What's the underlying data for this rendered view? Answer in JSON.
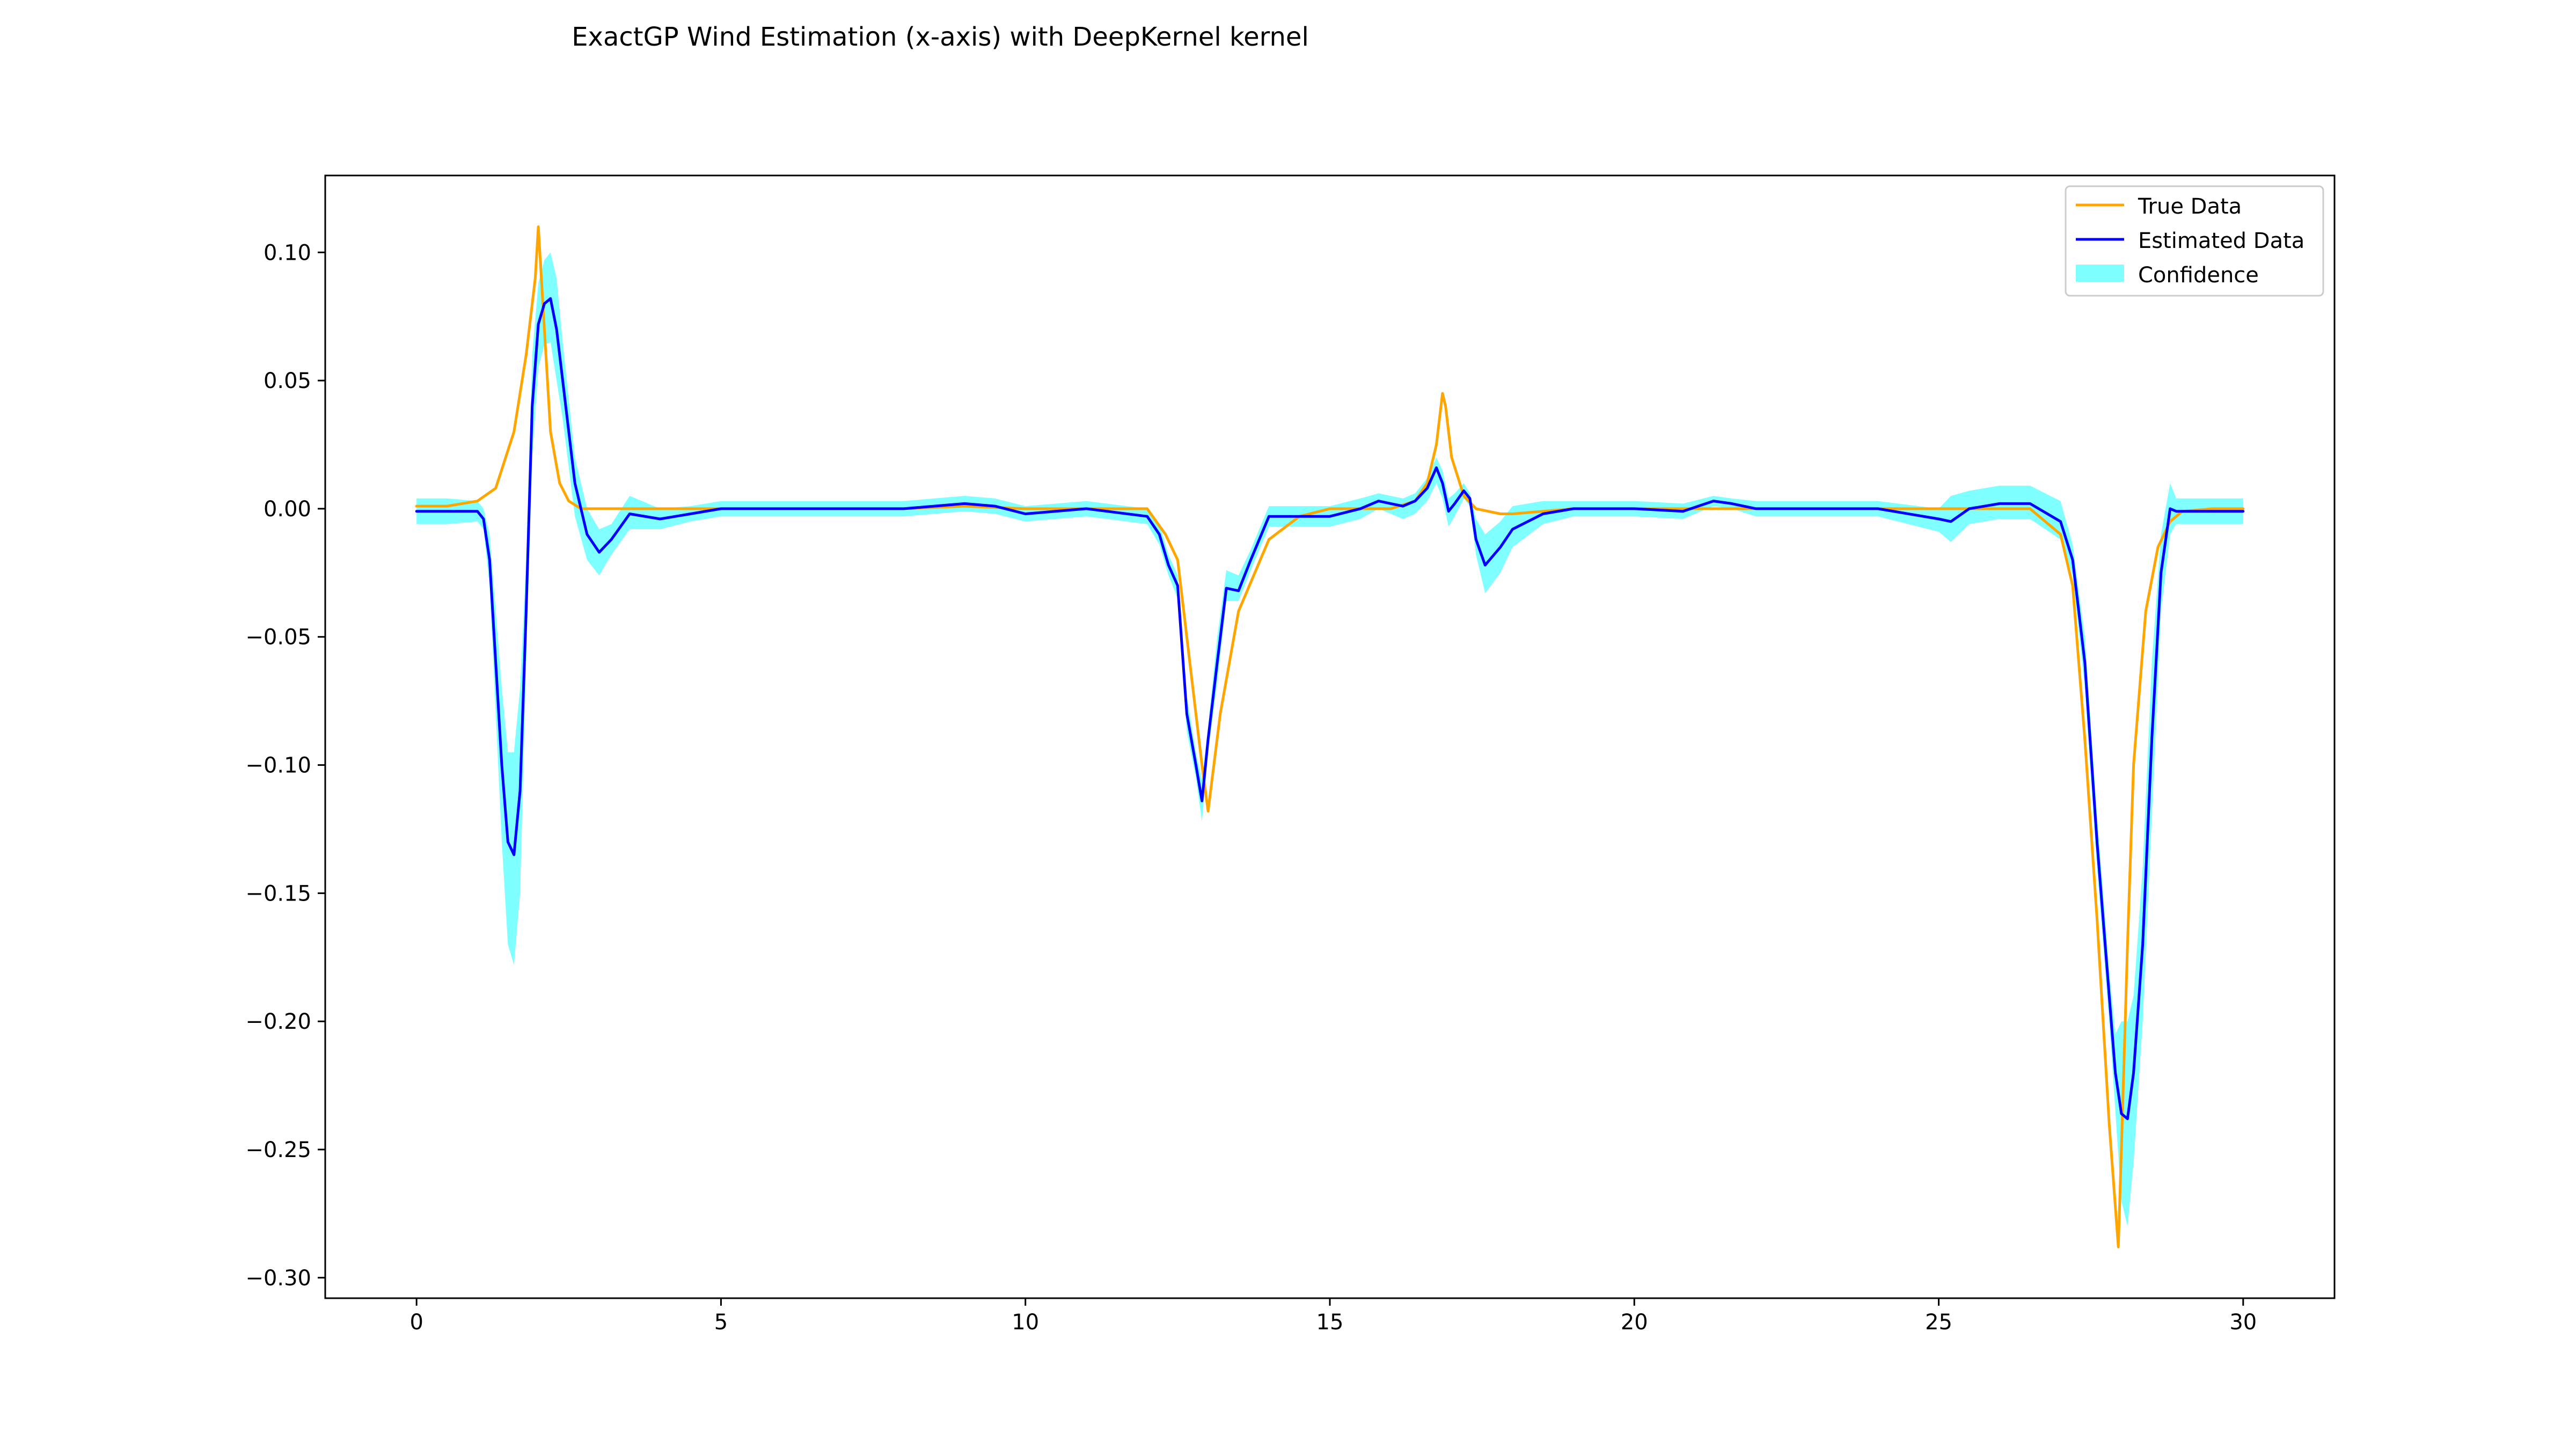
{
  "figure": {
    "title": "ExactGP Wind Estimation (x-axis) with DeepKernel kernel"
  },
  "legend": {
    "placement": "top-right",
    "items": [
      {
        "label": "True Data",
        "kind": "line",
        "color": "#ffa500"
      },
      {
        "label": "Estimated Data",
        "kind": "line",
        "color": "#0000ff"
      },
      {
        "label": "Confidence",
        "kind": "patch",
        "color": "#00ffff"
      }
    ]
  },
  "chart_data": {
    "type": "line",
    "title": "ExactGP Wind Estimation (x-axis) with DeepKernel kernel",
    "xlabel": "",
    "ylabel": "",
    "xlim": [
      -1.5,
      31.5
    ],
    "ylim": [
      -0.308,
      0.13
    ],
    "grid": false,
    "legend_position": "top-right",
    "xticks": [
      0,
      5,
      10,
      15,
      20,
      25,
      30
    ],
    "xtick_labels": [
      "0",
      "5",
      "10",
      "15",
      "20",
      "25",
      "30"
    ],
    "yticks": [
      0.1,
      0.05,
      0.0,
      -0.05,
      -0.1,
      -0.15,
      -0.2,
      -0.25,
      -0.3
    ],
    "ytick_labels": [
      "0.10",
      "0.05",
      "0.00",
      "−0.05",
      "−0.10",
      "−0.15",
      "−0.20",
      "−0.25",
      "−0.30"
    ],
    "series": [
      {
        "name": "True Data",
        "color": "#ffa500",
        "x": [
          0,
          0.5,
          1.0,
          1.3,
          1.6,
          1.8,
          1.95,
          2.0,
          2.1,
          2.2,
          2.35,
          2.5,
          2.7,
          3.0,
          4.0,
          5.0,
          8.0,
          9.0,
          10.0,
          11.0,
          12.0,
          12.3,
          12.5,
          12.7,
          12.9,
          13.0,
          13.2,
          13.5,
          14.0,
          14.5,
          15.0,
          16.0,
          16.4,
          16.6,
          16.75,
          16.85,
          16.9,
          17.0,
          17.2,
          17.4,
          17.6,
          17.8,
          18.0,
          19.0,
          20.0,
          21.0,
          22.0,
          24.0,
          25.0,
          25.5,
          26.0,
          26.5,
          27.0,
          27.2,
          27.4,
          27.6,
          27.8,
          27.95,
          28.0,
          28.1,
          28.2,
          28.4,
          28.6,
          28.8,
          29.0,
          29.5,
          30.0
        ],
        "y": [
          0.001,
          0.001,
          0.003,
          0.008,
          0.03,
          0.06,
          0.09,
          0.11,
          0.07,
          0.03,
          0.01,
          0.003,
          0.0,
          0.0,
          0.0,
          0.0,
          0.0,
          0.001,
          0.0,
          0.0,
          0.0,
          -0.01,
          -0.02,
          -0.06,
          -0.1,
          -0.118,
          -0.08,
          -0.04,
          -0.012,
          -0.003,
          0.0,
          0.0,
          0.003,
          0.01,
          0.025,
          0.045,
          0.04,
          0.02,
          0.005,
          0.0,
          -0.001,
          -0.002,
          -0.002,
          0.0,
          0.0,
          0.0,
          0.0,
          0.0,
          0.0,
          0.0,
          0.0,
          0.0,
          -0.01,
          -0.03,
          -0.09,
          -0.16,
          -0.24,
          -0.288,
          -0.25,
          -0.17,
          -0.1,
          -0.04,
          -0.015,
          -0.005,
          -0.001,
          0.0,
          0.0
        ]
      },
      {
        "name": "Estimated Data",
        "color": "#0000ff",
        "x": [
          0,
          0.5,
          1.0,
          1.1,
          1.2,
          1.3,
          1.4,
          1.5,
          1.6,
          1.7,
          1.8,
          1.9,
          2.0,
          2.1,
          2.2,
          2.3,
          2.4,
          2.6,
          2.8,
          3.0,
          3.2,
          3.5,
          4.0,
          4.5,
          5.0,
          6.0,
          7.0,
          8.0,
          9.0,
          9.5,
          10.0,
          11.0,
          12.0,
          12.2,
          12.35,
          12.5,
          12.65,
          12.8,
          12.9,
          13.0,
          13.15,
          13.3,
          13.5,
          13.7,
          14.0,
          14.3,
          14.5,
          15.0,
          15.5,
          15.8,
          16.0,
          16.2,
          16.4,
          16.6,
          16.75,
          16.85,
          16.95,
          17.05,
          17.2,
          17.3,
          17.4,
          17.55,
          17.8,
          18.0,
          18.5,
          19.0,
          20.0,
          20.8,
          21.3,
          21.6,
          22.0,
          24.0,
          25.0,
          25.2,
          25.5,
          26.0,
          26.5,
          27.0,
          27.2,
          27.4,
          27.6,
          27.8,
          27.9,
          28.0,
          28.1,
          28.2,
          28.35,
          28.5,
          28.65,
          28.8,
          28.9,
          29.5,
          30.0
        ],
        "y": [
          -0.001,
          -0.001,
          -0.001,
          -0.004,
          -0.02,
          -0.06,
          -0.1,
          -0.13,
          -0.135,
          -0.11,
          -0.04,
          0.04,
          0.072,
          0.08,
          0.082,
          0.07,
          0.05,
          0.01,
          -0.01,
          -0.017,
          -0.012,
          -0.002,
          -0.004,
          -0.002,
          0.0,
          0.0,
          0.0,
          0.0,
          0.002,
          0.001,
          -0.002,
          0.0,
          -0.003,
          -0.01,
          -0.022,
          -0.03,
          -0.08,
          -0.1,
          -0.114,
          -0.09,
          -0.06,
          -0.031,
          -0.032,
          -0.02,
          -0.003,
          -0.003,
          -0.003,
          -0.003,
          0.0,
          0.003,
          0.002,
          0.001,
          0.003,
          0.008,
          0.016,
          0.01,
          -0.001,
          0.002,
          0.007,
          0.004,
          -0.012,
          -0.022,
          -0.015,
          -0.008,
          -0.002,
          0.0,
          0.0,
          -0.001,
          0.003,
          0.002,
          0.0,
          0.0,
          -0.004,
          -0.005,
          0.0,
          0.002,
          0.002,
          -0.005,
          -0.02,
          -0.06,
          -0.13,
          -0.19,
          -0.22,
          -0.236,
          -0.238,
          -0.22,
          -0.17,
          -0.09,
          -0.025,
          0.0,
          -0.001,
          -0.001,
          -0.001
        ]
      },
      {
        "name": "Confidence",
        "color": "#00ffff",
        "kind": "band",
        "x": [
          0,
          0.5,
          1.0,
          1.1,
          1.2,
          1.3,
          1.4,
          1.5,
          1.6,
          1.7,
          1.8,
          1.9,
          2.0,
          2.1,
          2.2,
          2.3,
          2.4,
          2.6,
          2.8,
          3.0,
          3.2,
          3.5,
          4.0,
          4.5,
          5.0,
          6.0,
          7.0,
          8.0,
          9.0,
          9.5,
          10.0,
          11.0,
          12.0,
          12.2,
          12.35,
          12.5,
          12.65,
          12.8,
          12.9,
          13.0,
          13.15,
          13.3,
          13.5,
          13.7,
          14.0,
          14.3,
          14.5,
          15.0,
          15.5,
          15.8,
          16.0,
          16.2,
          16.4,
          16.6,
          16.75,
          16.85,
          16.95,
          17.05,
          17.2,
          17.3,
          17.4,
          17.55,
          17.8,
          18.0,
          18.5,
          19.0,
          20.0,
          20.8,
          21.3,
          21.6,
          22.0,
          24.0,
          25.0,
          25.2,
          25.5,
          26.0,
          26.5,
          27.0,
          27.2,
          27.4,
          27.6,
          27.8,
          27.9,
          28.0,
          28.1,
          28.2,
          28.35,
          28.5,
          28.65,
          28.8,
          28.9,
          29.5,
          30.0
        ],
        "upper": [
          0.004,
          0.004,
          0.003,
          0.0,
          -0.01,
          -0.04,
          -0.07,
          -0.095,
          -0.095,
          -0.07,
          -0.02,
          0.06,
          0.088,
          0.097,
          0.1,
          0.09,
          0.065,
          0.02,
          0.0,
          -0.008,
          -0.006,
          0.005,
          0.0,
          0.001,
          0.003,
          0.003,
          0.003,
          0.003,
          0.005,
          0.004,
          0.001,
          0.003,
          0.0,
          -0.006,
          -0.018,
          -0.026,
          -0.073,
          -0.095,
          -0.106,
          -0.085,
          -0.05,
          -0.024,
          -0.026,
          -0.016,
          0.001,
          0.001,
          0.001,
          0.001,
          0.004,
          0.006,
          0.005,
          0.004,
          0.006,
          0.012,
          0.02,
          0.015,
          0.004,
          0.006,
          0.01,
          0.006,
          -0.004,
          -0.01,
          -0.005,
          0.001,
          0.003,
          0.003,
          0.003,
          0.002,
          0.005,
          0.004,
          0.003,
          0.003,
          0.0,
          0.005,
          0.007,
          0.009,
          0.009,
          0.003,
          -0.014,
          -0.05,
          -0.12,
          -0.18,
          -0.205,
          -0.2,
          -0.2,
          -0.19,
          -0.14,
          -0.06,
          -0.01,
          0.01,
          0.004,
          0.004,
          0.004
        ],
        "lower": [
          -0.006,
          -0.006,
          -0.005,
          -0.008,
          -0.03,
          -0.08,
          -0.13,
          -0.17,
          -0.178,
          -0.15,
          -0.06,
          0.02,
          0.055,
          0.064,
          0.065,
          0.05,
          0.035,
          -0.003,
          -0.02,
          -0.026,
          -0.018,
          -0.008,
          -0.008,
          -0.005,
          -0.003,
          -0.003,
          -0.003,
          -0.003,
          -0.001,
          -0.002,
          -0.005,
          -0.003,
          -0.006,
          -0.014,
          -0.026,
          -0.035,
          -0.087,
          -0.105,
          -0.122,
          -0.095,
          -0.068,
          -0.036,
          -0.036,
          -0.024,
          -0.007,
          -0.007,
          -0.007,
          -0.007,
          -0.004,
          0.0,
          -0.002,
          -0.004,
          -0.002,
          0.003,
          0.01,
          0.004,
          -0.007,
          -0.003,
          0.004,
          0.001,
          -0.018,
          -0.033,
          -0.025,
          -0.015,
          -0.006,
          -0.003,
          -0.003,
          -0.004,
          0.001,
          0.0,
          -0.003,
          -0.003,
          -0.009,
          -0.013,
          -0.006,
          -0.004,
          -0.004,
          -0.012,
          -0.026,
          -0.07,
          -0.14,
          -0.2,
          -0.235,
          -0.27,
          -0.28,
          -0.255,
          -0.2,
          -0.12,
          -0.04,
          -0.01,
          -0.006,
          -0.006,
          -0.006
        ]
      }
    ]
  }
}
